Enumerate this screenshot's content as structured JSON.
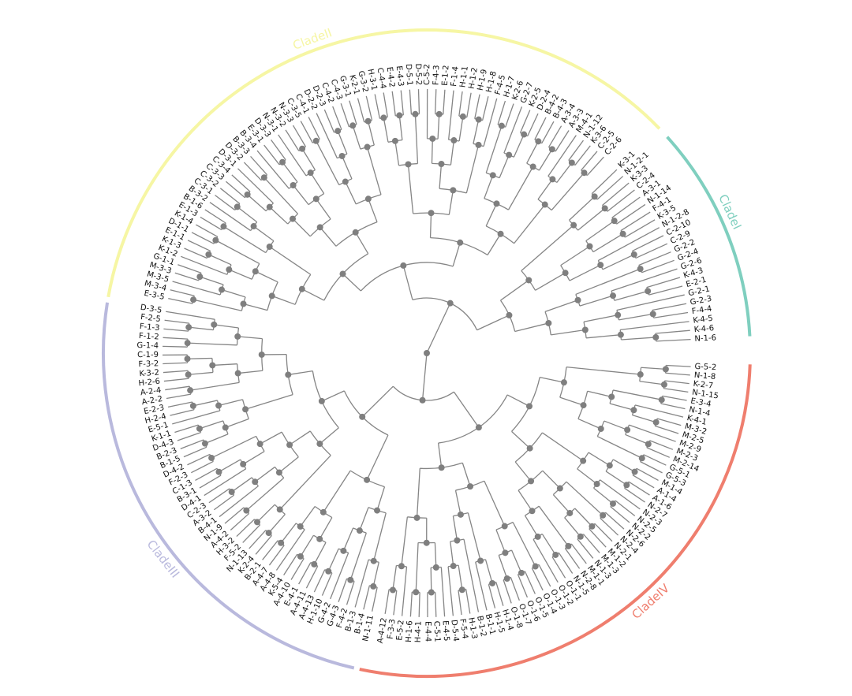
{
  "clades": [
    {
      "name": "CladeI",
      "color": "#7fcfbf",
      "leaves": [
        "K-3-1",
        "N-1-2-1",
        "K-3-3",
        "C-2-4",
        "A-3-1",
        "N-1-14",
        "F-4-1",
        "K-3-5",
        "N-1-2-8",
        "C-2-10",
        "C-2-9",
        "G-2-2",
        "G-2-4",
        "G-2-6",
        "K-4-3",
        "E-2-1",
        "G-2-1",
        "G-2-3",
        "F-4-4",
        "K-4-5",
        "K-4-6",
        "N-1-6"
      ]
    },
    {
      "name": "CladeII",
      "color": "#f6f6a4",
      "leaves": [
        "E-3-5",
        "M-3-4",
        "M-3-5",
        "M-3-3",
        "G-1-1",
        "K-1-2",
        "K-1-3",
        "E-1-1",
        "D-1-1",
        "K-1-4",
        "E-1-3",
        "B-1-6",
        "B-3-2",
        "C-3-1",
        "C-3-2",
        "C-3-3",
        "C-3-4",
        "D-3-1",
        "D-3-2",
        "B-3-3",
        "B-3-4",
        "E-3-1",
        "D-3-3",
        "N-3-1",
        "N-3-2",
        "N-3-3",
        "C-3-5",
        "C-4-1",
        "D-2-2",
        "D-2-3",
        "C-4-2",
        "C-4-3",
        "G-3-1",
        "K-2-1",
        "G-3-2",
        "H-3-1",
        "C-4-4",
        "E-4-2",
        "E-4-3",
        "D-5-1",
        "D-5-2",
        "C-5-2",
        "F-4-3",
        "E-1-2",
        "F-1-4",
        "H-1-1",
        "H-1-2",
        "H-1-9",
        "H-1-8",
        "F-4-5",
        "H-1-7",
        "K-2-6",
        "G-2-7",
        "K-2-5",
        "D-2-4",
        "B-4-2",
        "B-4-3",
        "A-3-4",
        "A-3-3",
        "M-4-1",
        "N-1-12",
        "K-3-6",
        "C-2-5",
        "C-2-6"
      ]
    },
    {
      "name": "CladeIII",
      "color": "#b9b9dd",
      "leaves": [
        "N-1-11",
        "B-1-4",
        "B-1-3",
        "F-4-2",
        "G-4-3",
        "G-4-2",
        "H-1-10",
        "A-4-13",
        "A-4-11",
        "E-4-1",
        "A-4-10",
        "K-5-4",
        "A-4-8",
        "A-4-7",
        "B-2-1",
        "K-2-4",
        "N-1-13",
        "F-5-2",
        "H-3-2",
        "A-4-2",
        "N-1-9",
        "B-4-1",
        "A-3-2",
        "C-2-3",
        "D-4-1",
        "B-3-1",
        "C-1-3",
        "F-2-3",
        "D-4-2",
        "B-1-5",
        "B-2-3",
        "D-4-3",
        "K-1-1",
        "E-5-1",
        "H-2-4",
        "E-2-3",
        "A-2-2",
        "A-2-4",
        "H-2-6",
        "K-3-2",
        "F-3-2",
        "C-1-9",
        "G-1-4",
        "F-1-2",
        "F-1-3",
        "F-2-5",
        "D-3-5"
      ]
    },
    {
      "name": "CladeIV",
      "color": "#ef7e6e",
      "leaves": [
        "G-5-2",
        "N-1-8",
        "K-2-7",
        "N-1-15",
        "E-3-4",
        "N-1-4",
        "K-4-1",
        "M-3-2",
        "M-2-5",
        "M-2-9",
        "M-2-3",
        "M-2-14",
        "G-5-1",
        "G-5-3",
        "M-1-4",
        "A-1-4",
        "A-1-6",
        "N-2-7",
        "N-2-3",
        "N-2-5",
        "N-2-2",
        "N-2-6",
        "N-2-4",
        "N-2-1",
        "M-1-2",
        "M-1-3",
        "N-1-3",
        "M-1-1",
        "N-2-8",
        "N-1-5",
        "O-1-1",
        "O-1-2",
        "O-1-3",
        "O-1-4",
        "O-1-5",
        "O-1-6",
        "O-1-7",
        "O-1-8",
        "H-1-4",
        "H-1-5",
        "B-1-1",
        "B-1-2",
        "H-1-3",
        "F-5-4",
        "D-5-4",
        "E-4-5",
        "C-5-1",
        "E-4-4",
        "H-4-1",
        "H-1-6",
        "E-5-2",
        "F-3-3",
        "A-4-12"
      ]
    }
  ]
}
